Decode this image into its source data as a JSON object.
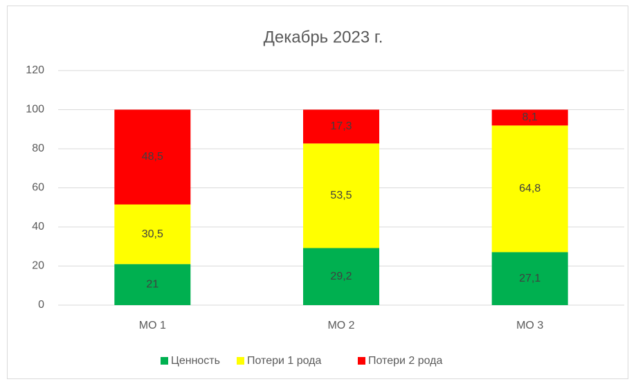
{
  "chart_data": {
    "type": "stacked_bar",
    "title": "Декабрь 2023 г.",
    "categories": [
      "МО 1",
      "МО 2",
      "МО 3"
    ],
    "series": [
      {
        "name": "Ценность",
        "color": "#00b050",
        "values": [
          21,
          29.2,
          27.1
        ],
        "value_labels": [
          "21",
          "29,2",
          "27,1"
        ]
      },
      {
        "name": "Потери 1 рода",
        "color": "#ffff00",
        "values": [
          30.5,
          53.5,
          64.8
        ],
        "value_labels": [
          "30,5",
          "53,5",
          "64,8"
        ]
      },
      {
        "name": "Потери 2 рода",
        "color": "#ff0000",
        "values": [
          48.5,
          17.3,
          8.1
        ],
        "value_labels": [
          "48,5",
          "17,3",
          "8,1"
        ]
      }
    ],
    "ylim": [
      0,
      120
    ],
    "yticks": [
      0,
      20,
      40,
      60,
      80,
      100,
      120
    ],
    "grid": true,
    "legend": "bottom"
  }
}
